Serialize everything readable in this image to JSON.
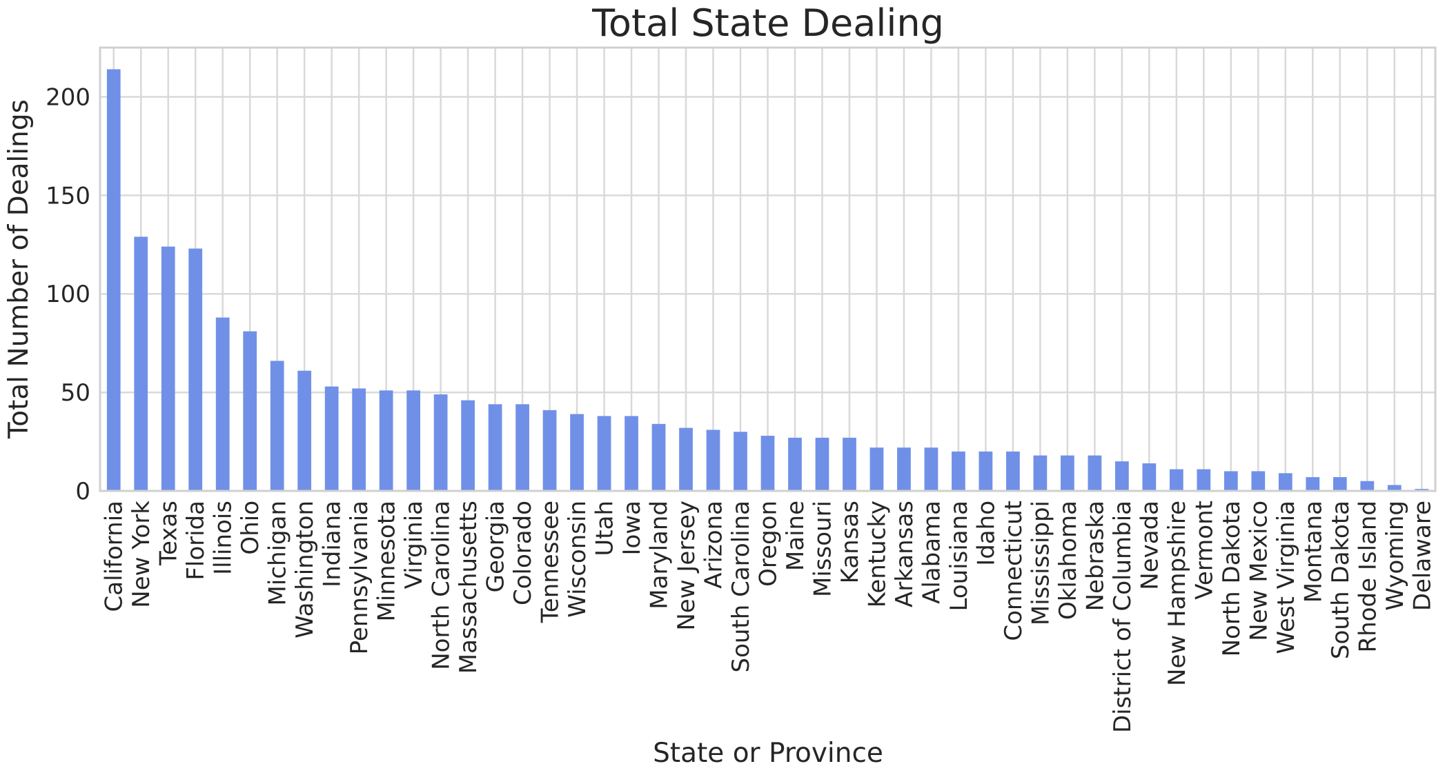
{
  "chart_data": {
    "type": "bar",
    "title": "Total State Dealing",
    "xlabel": "State or Province",
    "ylabel": "Total Number of Dealings",
    "ylim": [
      0,
      225
    ],
    "yticks": [
      0,
      50,
      100,
      150,
      200
    ],
    "grid": true,
    "bar_color": "#7090E8",
    "categories": [
      "California",
      "New York",
      "Texas",
      "Florida",
      "Illinois",
      "Ohio",
      "Michigan",
      "Washington",
      "Indiana",
      "Pennsylvania",
      "Minnesota",
      "Virginia",
      "North Carolina",
      "Massachusetts",
      "Georgia",
      "Colorado",
      "Tennessee",
      "Wisconsin",
      "Utah",
      "Iowa",
      "Maryland",
      "New Jersey",
      "Arizona",
      "South Carolina",
      "Oregon",
      "Maine",
      "Missouri",
      "Kansas",
      "Kentucky",
      "Arkansas",
      "Alabama",
      "Louisiana",
      "Idaho",
      "Connecticut",
      "Mississippi",
      "Oklahoma",
      "Nebraska",
      "District of Columbia",
      "Nevada",
      "New Hampshire",
      "Vermont",
      "North Dakota",
      "New Mexico",
      "West Virginia",
      "Montana",
      "South Dakota",
      "Rhode Island",
      "Wyoming",
      "Delaware"
    ],
    "values": [
      214,
      129,
      124,
      123,
      88,
      81,
      66,
      61,
      53,
      52,
      51,
      51,
      49,
      46,
      44,
      44,
      41,
      39,
      38,
      38,
      34,
      32,
      31,
      30,
      28,
      27,
      27,
      27,
      22,
      22,
      22,
      20,
      20,
      20,
      18,
      18,
      18,
      15,
      14,
      11,
      11,
      10,
      10,
      9,
      7,
      7,
      5,
      3,
      1
    ]
  }
}
